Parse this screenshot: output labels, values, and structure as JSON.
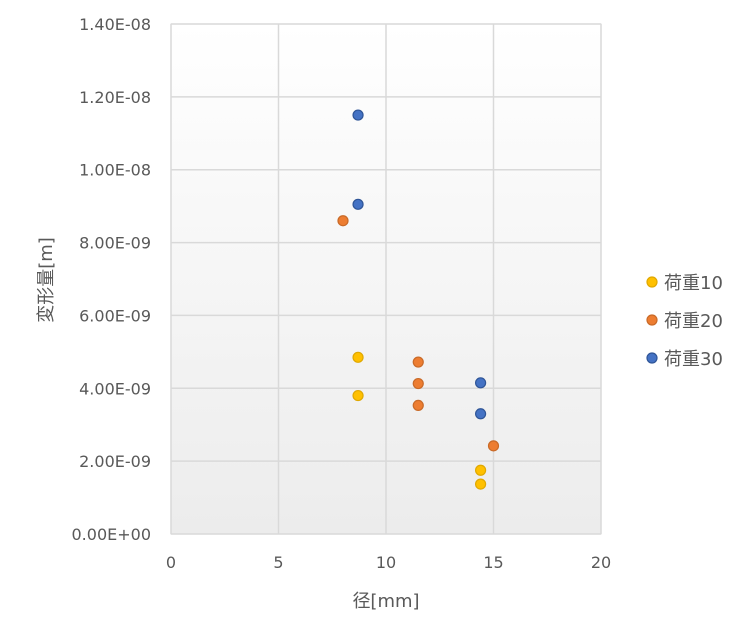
{
  "chart_data": {
    "type": "scatter",
    "xlabel": "径[mm]",
    "ylabel": "変形量[m]",
    "xlim": [
      0,
      20
    ],
    "ylim": [
      0,
      1.4e-08
    ],
    "x_ticks": [
      0,
      5,
      10,
      15,
      20
    ],
    "x_tick_labels": [
      "0",
      "5",
      "10",
      "15",
      "20"
    ],
    "y_ticks": [
      0,
      2e-09,
      4e-09,
      6e-09,
      8e-09,
      1e-08,
      1.2e-08,
      1.4e-08
    ],
    "y_tick_labels": [
      "0.00E+00",
      "2.00E-09",
      "4.00E-09",
      "6.00E-09",
      "8.00E-09",
      "1.00E-08",
      "1.20E-08",
      "1.40E-08"
    ],
    "grid": true,
    "legend_position": "right",
    "series": [
      {
        "name": "荷重10",
        "color": "#FFC000",
        "stroke": "#E0A800",
        "points": [
          {
            "x": 8.7,
            "y": 4.85e-09
          },
          {
            "x": 8.7,
            "y": 3.8e-09
          },
          {
            "x": 14.4,
            "y": 1.75e-09
          },
          {
            "x": 14.4,
            "y": 1.37e-09
          }
        ]
      },
      {
        "name": "荷重20",
        "color": "#ED7D31",
        "stroke": "#C96A28",
        "points": [
          {
            "x": 8.0,
            "y": 8.6e-09
          },
          {
            "x": 11.5,
            "y": 4.72e-09
          },
          {
            "x": 11.5,
            "y": 4.13e-09
          },
          {
            "x": 11.5,
            "y": 3.53e-09
          },
          {
            "x": 15.0,
            "y": 2.42e-09
          }
        ]
      },
      {
        "name": "荷重30",
        "color": "#4472C4",
        "stroke": "#2F5597",
        "points": [
          {
            "x": 8.7,
            "y": 1.15e-08
          },
          {
            "x": 8.7,
            "y": 9.05e-09
          },
          {
            "x": 14.4,
            "y": 4.15e-09
          },
          {
            "x": 14.4,
            "y": 3.3e-09
          }
        ]
      }
    ]
  }
}
